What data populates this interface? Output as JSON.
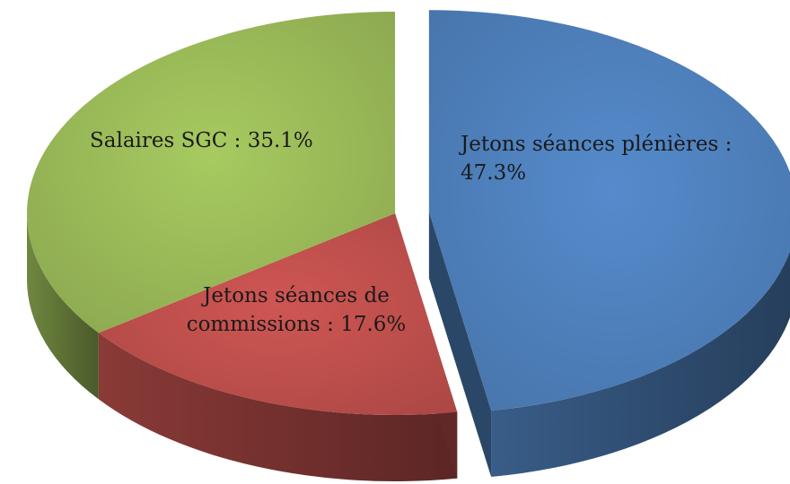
{
  "chart_data": {
    "type": "pie",
    "title": "",
    "slices": [
      {
        "name": "Jetons séances plénières",
        "label_lines": [
          "Jetons séances plénières :",
          "47.3%"
        ],
        "value": 47.3,
        "color": "#4f81bd",
        "exploded": true
      },
      {
        "name": "Jetons séances de commissions",
        "label_lines": [
          "Jetons séances de",
          "commissions : 17.6%"
        ],
        "value": 17.6,
        "color": "#c0504d",
        "exploded": false
      },
      {
        "name": "Salaires SGC",
        "label_lines": [
          "Salaires SGC : 35.1%"
        ],
        "value": 35.1,
        "color": "#9bbb59",
        "exploded": false
      }
    ],
    "style": "3d-exploded",
    "legend": "none",
    "start_angle": "12 o'clock, clockwise"
  }
}
